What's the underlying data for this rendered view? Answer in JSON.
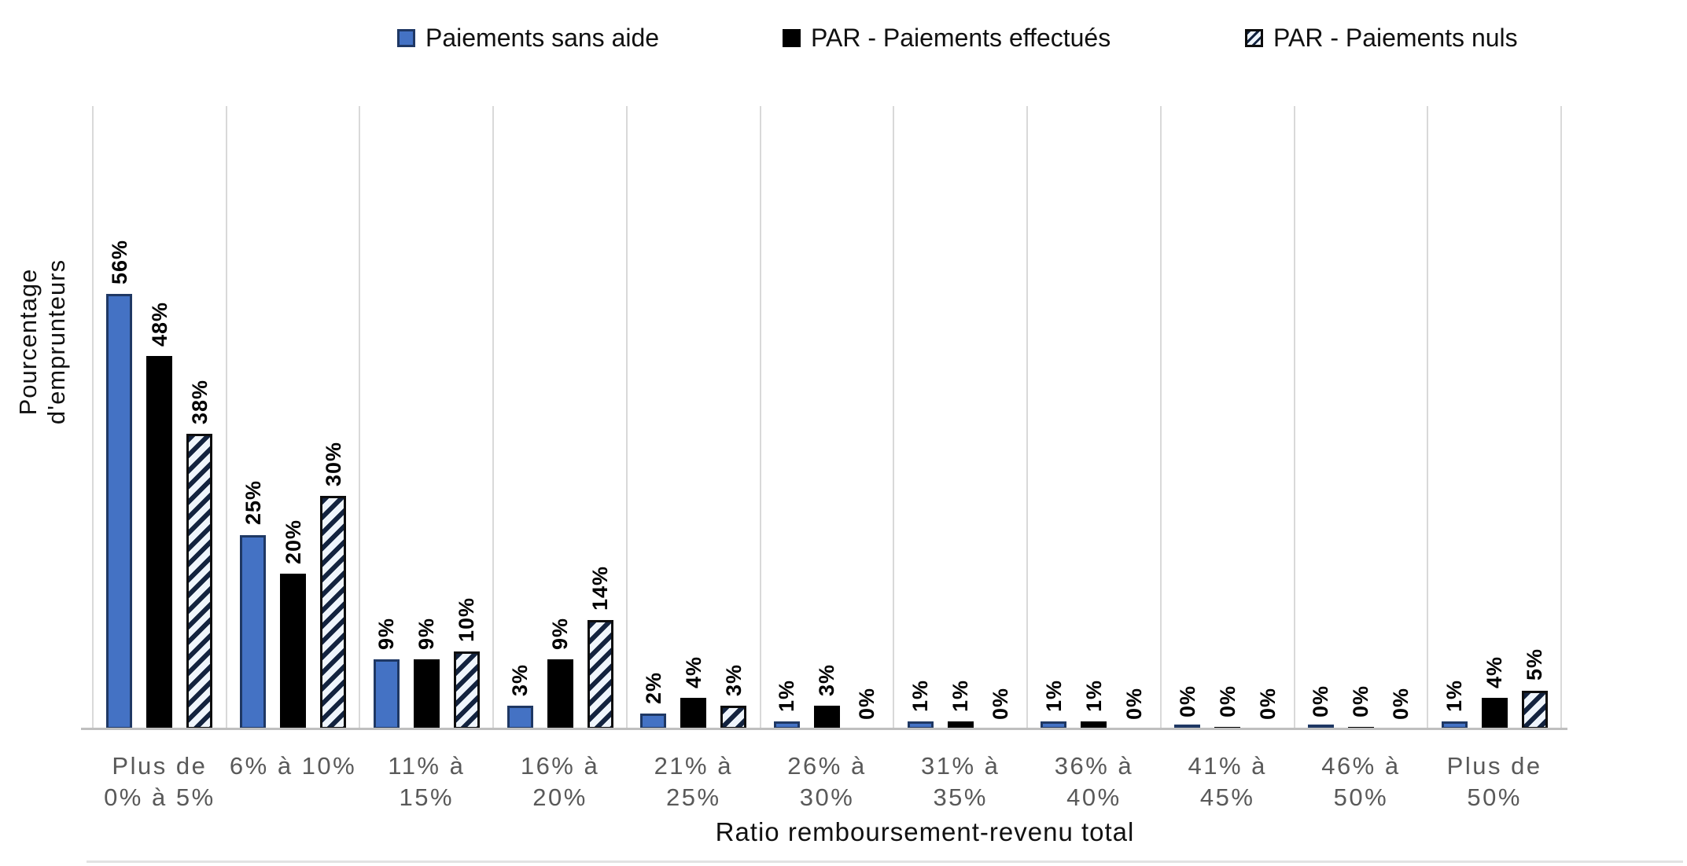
{
  "chart_data": {
    "type": "bar",
    "title": "",
    "categories": [
      "Plus de\n0% à 5%",
      "6% à 10%",
      "11% à\n15%",
      "16% à\n20%",
      "21% à\n25%",
      "26% à\n30%",
      "31% à\n35%",
      "36% à\n40%",
      "41% à\n45%",
      "46% à\n50%",
      "Plus de\n50%"
    ],
    "series": [
      {
        "name": "Paiements sans aide",
        "style": "blue",
        "values": [
          56,
          25,
          9,
          3,
          2,
          1,
          1,
          1,
          0,
          0,
          1
        ]
      },
      {
        "name": "PAR - Paiements effectués",
        "style": "black",
        "values": [
          48,
          20,
          9,
          9,
          4,
          3,
          1,
          1,
          0,
          0,
          4
        ]
      },
      {
        "name": "PAR - Paiements nuls",
        "style": "hatch",
        "values": [
          38,
          30,
          10,
          14,
          3,
          0,
          0,
          0,
          0,
          0,
          5
        ]
      }
    ],
    "data_labels": [
      "56%",
      "48%",
      "38%",
      "25%",
      "20%",
      "30%",
      "9%",
      "9%",
      "10%",
      "3%",
      "9%",
      "14%",
      "2%",
      "4%",
      "3%",
      "1%",
      "3%",
      "0%",
      "1%",
      "1%",
      "0%",
      "1%",
      "1%",
      "0%",
      "0%",
      "0%",
      "0%",
      "0%",
      "0%",
      "0%",
      "1%",
      "4%",
      "5%"
    ],
    "xlabel": "Ratio remboursement-revenu total",
    "ylabel": "Pourcentage d'emprunteurs",
    "ylim": [
      0,
      80
    ],
    "y_tick_labels_visible": false,
    "grid": "vertical-category-separators",
    "legend_position": "top"
  },
  "colors": {
    "series_blue_fill": "#4472C4",
    "series_blue_border": "#1F3864",
    "series_black_fill": "#000000",
    "hatch_dark": "#13233F",
    "hatch_light": "#EFF5FC",
    "gridline": "#D9D9D9",
    "axis_line": "#BFBFBF",
    "category_label": "#595959",
    "text": "#111111"
  }
}
